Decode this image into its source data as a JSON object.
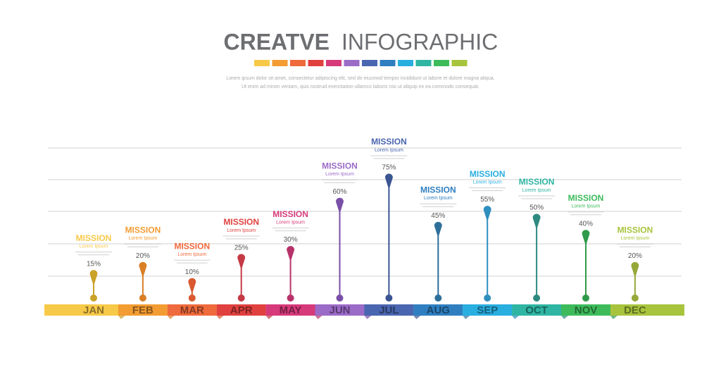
{
  "chart_data": {
    "type": "lollipop",
    "title_bold": "CREATVE",
    "title_light": "INFOGRAPHIC",
    "subtitle": [
      "Lorem ipsum dolor sit amet, consectetur adipiscing elit, sed do eiusmod tempor incididunt ut labore et dolore magna aliqua.",
      "Ut enim ad minim veniam, quis nostrud exercitation ullamco laboris nisi ut aliquip ex ea commodo consequat."
    ],
    "categories": [
      "JAN",
      "FEB",
      "MAR",
      "APR",
      "MAY",
      "JUN",
      "JUL",
      "AUG",
      "SEP",
      "OCT",
      "NOV",
      "DEC"
    ],
    "values": [
      15,
      20,
      10,
      25,
      30,
      60,
      75,
      45,
      55,
      50,
      40,
      20
    ],
    "value_labels": [
      "15%",
      "20%",
      "10%",
      "25%",
      "30%",
      "60%",
      "75%",
      "45%",
      "55%",
      "50%",
      "40%",
      "20%"
    ],
    "colors": [
      "#f7c948",
      "#f39c32",
      "#ef6a3c",
      "#e0413f",
      "#d63a7a",
      "#9b6bc8",
      "#4a66b0",
      "#2f7fc0",
      "#29aee0",
      "#2fb5a3",
      "#3dbb5b",
      "#a8c43c"
    ],
    "pin_colors": [
      "#c9a227",
      "#d97f26",
      "#d9582f",
      "#c43a45",
      "#b8326a",
      "#7a4fa8",
      "#3b5593",
      "#2e6f9a",
      "#2e8fbf",
      "#2e8a80",
      "#2f9a4a",
      "#96a83a"
    ],
    "annotations": [
      {
        "title": "MISSION",
        "subtitle": "Lorem Ipsum"
      },
      {
        "title": "MISSION",
        "subtitle": "Lorem Ipsum"
      },
      {
        "title": "MISSION",
        "subtitle": "Lorem Ipsum"
      },
      {
        "title": "MISSION",
        "subtitle": "Lorem Ipsum"
      },
      {
        "title": "MISSION",
        "subtitle": "Lorem Ipsum"
      },
      {
        "title": "MISSION",
        "subtitle": "Lorem Ipsum"
      },
      {
        "title": "MISSION",
        "subtitle": "Lorem Ipsum"
      },
      {
        "title": "MISSION",
        "subtitle": "Lorem Ipsum"
      },
      {
        "title": "MISSION",
        "subtitle": "Lorem Ipsum"
      },
      {
        "title": "MISSION",
        "subtitle": "Lorem Ipsum"
      },
      {
        "title": "MISSION",
        "subtitle": "Lorem Ipsum"
      },
      {
        "title": "MISSION",
        "subtitle": "Lorem Ipsum"
      }
    ]
  }
}
